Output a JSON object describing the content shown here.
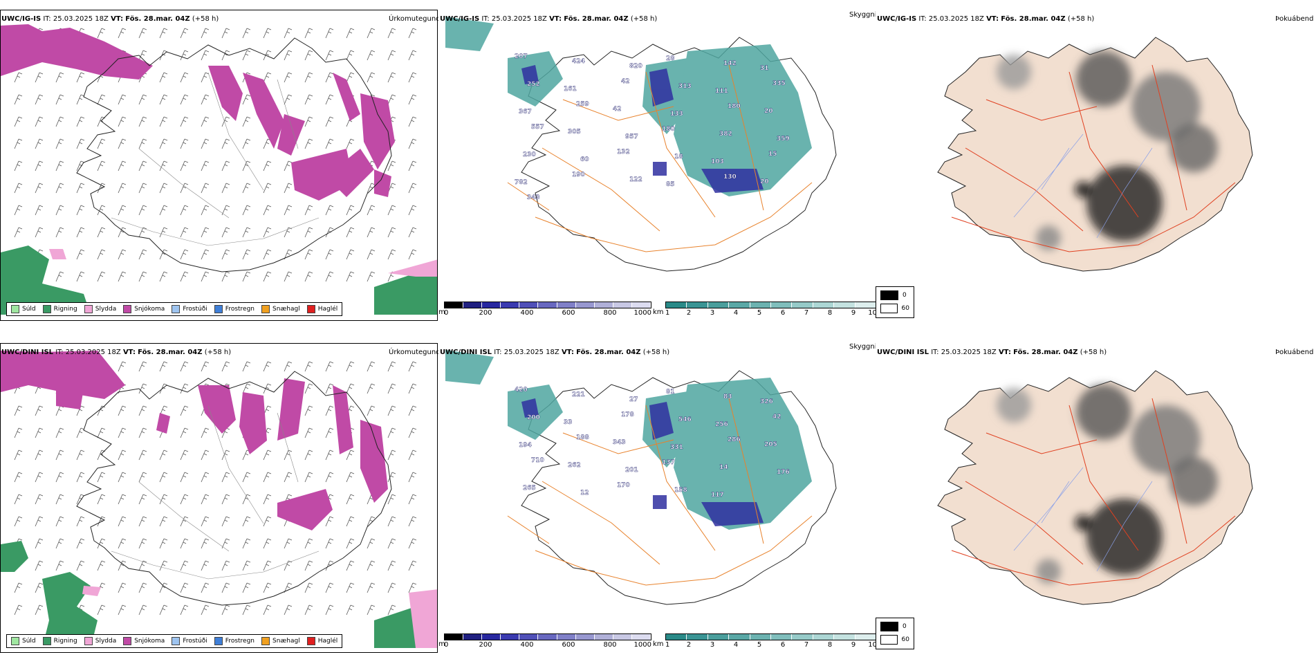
{
  "colors": {
    "rain": "#3a9a64",
    "snow": "#c04aa6",
    "sleet": "#f0a6d6",
    "drizzle": "#9fe6a0",
    "teal": "#4fa6a0",
    "blue": "#3030a0",
    "orange": "#e8822c",
    "landbeige": "#f2dfd0",
    "redline": "#e04020"
  },
  "rows": [
    {
      "precip": {
        "model": "UWC/IG-IS",
        "it_label": "IT:",
        "it_value": "25.03.2025 18Z",
        "vt_label": "VT:",
        "vt_value": "Fös. 28.mar. 04Z",
        "lead": "(+58 h)",
        "title": "Úrkomutegund"
      },
      "vis": {
        "model": "UWC/IG-IS",
        "it_label": "IT:",
        "it_value": "25.03.2025 18Z",
        "vt_label": "VT:",
        "vt_value": "Fös. 28.mar. 04Z",
        "lead": "(+58 h)",
        "title": "Skyggni",
        "labels": [
          "207",
          "424",
          "820",
          "28",
          "142",
          "31",
          "252",
          "161",
          "42",
          "313",
          "111",
          "335",
          "367",
          "259",
          "42",
          "133",
          "180",
          "20",
          "557",
          "305",
          "957",
          "180",
          "382",
          "359",
          "230",
          "60",
          "132",
          "18",
          "103",
          "15",
          "782",
          "190",
          "122",
          "85",
          "130",
          "20",
          "343"
        ]
      },
      "cloud": {
        "model": "UWC/IG-IS",
        "it_label": "IT:",
        "it_value": "25.03.2025 18Z",
        "vt_label": "VT:",
        "vt_value": "Fös. 28.mar. 04Z",
        "lead": "(+58 h)",
        "title": "Þokuábendi"
      }
    },
    {
      "precip": {
        "model": "UWC/DINI ISL",
        "it_label": "IT:",
        "it_value": "25.03.2025 18Z",
        "vt_label": "VT:",
        "vt_value": "Fös. 28.mar. 04Z",
        "lead": "(+58 h)",
        "title": "Úrkomutegund"
      },
      "vis": {
        "model": "UWC/DINI ISL",
        "it_label": "IT:",
        "it_value": "25.03.2025 18Z",
        "vt_label": "VT:",
        "vt_value": "Fös. 28.mar. 04Z",
        "lead": "(+58 h)",
        "title": "Skyggni",
        "labels": [
          "420",
          "221",
          "27",
          "81",
          "83",
          "326",
          "200",
          "33",
          "178",
          "546",
          "256",
          "42",
          "194",
          "188",
          "343",
          "331",
          "286",
          "205",
          "710",
          "262",
          "201",
          "137",
          "14",
          "176",
          "265",
          "12",
          "170",
          "158",
          "117"
        ]
      },
      "cloud": {
        "model": "UWC/DINI ISL",
        "it_label": "IT:",
        "it_value": "25.03.2025 18Z",
        "vt_label": "VT:",
        "vt_value": "Fös. 28.mar. 04Z",
        "lead": "(+58 h)",
        "title": "Þokuábendi"
      }
    }
  ],
  "precip_legend": [
    {
      "label": "Súld",
      "color": "#9fe6a0"
    },
    {
      "label": "Rigning",
      "color": "#3a9a64"
    },
    {
      "label": "Slydda",
      "color": "#f0a6d6"
    },
    {
      "label": "Snjókoma",
      "color": "#c04aa6"
    },
    {
      "label": "Frostúði",
      "color": "#9ec4f0"
    },
    {
      "label": "Frostregn",
      "color": "#3f7fd8"
    },
    {
      "label": "Snæhagl",
      "color": "#f0a020"
    },
    {
      "label": "Haglél",
      "color": "#e02020"
    }
  ],
  "vis_bar_m": {
    "unit": "m",
    "ticks": [
      "0",
      "200",
      "400",
      "600",
      "800",
      "1000"
    ],
    "colors": [
      "#000000",
      "#202080",
      "#2828a0",
      "#3a3ab0",
      "#5050b8",
      "#6868c0",
      "#8080c8",
      "#9898d0",
      "#b0b0d8",
      "#c8c8e4",
      "#dcdcf0"
    ]
  },
  "vis_bar_km": {
    "unit": "km",
    "ticks": [
      "1",
      "2",
      "3",
      "4",
      "5",
      "6",
      "7",
      "8",
      "9",
      "10"
    ],
    "colors": [
      "#2a8a88",
      "#3a9494",
      "#4a9e9c",
      "#5aa8a6",
      "#6cb2b0",
      "#80bebc",
      "#96cac8",
      "#acd6d4",
      "#c4e2e0",
      "#ddeeed"
    ]
  },
  "cloud_legend": [
    {
      "label": "0",
      "color": "#000000"
    },
    {
      "label": "60",
      "color": "#ffffff"
    }
  ]
}
